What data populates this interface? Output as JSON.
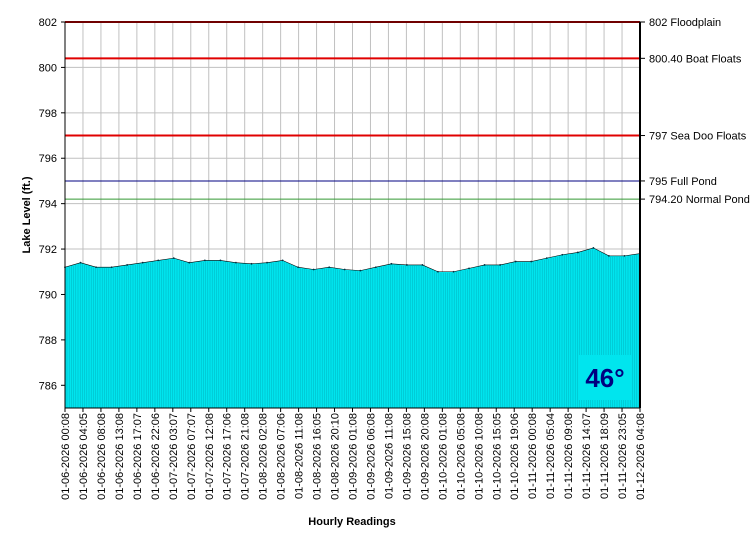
{
  "chart_data": {
    "type": "area",
    "title": "",
    "xlabel": "Hourly Readings",
    "ylabel": "Lake Level (ft.)",
    "ylim": [
      785,
      802
    ],
    "yticks": [
      786,
      788,
      790,
      792,
      794,
      796,
      798,
      800,
      802
    ],
    "grid": true,
    "legend": "none",
    "x_tick_labels": [
      "01-06-2026 00:08",
      "01-06-2026 04:05",
      "01-06-2026 08:08",
      "01-06-2026 13:08",
      "01-06-2026 17:07",
      "01-06-2026 22:06",
      "01-07-2026 03:07",
      "01-07-2026 07:07",
      "01-07-2026 12:08",
      "01-07-2026 17:06",
      "01-07-2026 21:08",
      "01-08-2026 02:08",
      "01-08-2026 07:06",
      "01-08-2026 11:08",
      "01-08-2026 16:05",
      "01-08-2026 20:10",
      "01-09-2026 01:08",
      "01-09-2026 06:08",
      "01-09-2026 11:08",
      "01-09-2026 15:08",
      "01-09-2026 20:08",
      "01-10-2026 01:08",
      "01-10-2026 05:08",
      "01-10-2026 10:08",
      "01-10-2026 15:05",
      "01-10-2026 19:06",
      "01-11-2026 00:08",
      "01-11-2026 05:04",
      "01-11-2026 09:08",
      "01-11-2026 14:07",
      "01-11-2026 18:09",
      "01-11-2026 23:05",
      "01-12-2026 04:08"
    ],
    "series": [
      {
        "values": [
          791.2,
          791.4,
          791.2,
          791.2,
          791.3,
          791.4,
          791.5,
          791.6,
          791.4,
          791.5,
          791.5,
          791.4,
          791.35,
          791.4,
          791.5,
          791.2,
          791.1,
          791.2,
          791.1,
          791.05,
          791.2,
          791.35,
          791.3,
          791.3,
          791.0,
          791.0,
          791.15,
          791.3,
          791.3,
          791.45,
          791.45,
          791.6,
          791.75,
          791.85,
          792.05,
          791.7,
          791.7,
          791.8
        ],
        "color": "#00e5ee"
      }
    ],
    "reference_lines": [
      {
        "value": 802,
        "label": "802 Floodplain",
        "color": "#e00000"
      },
      {
        "value": 800.4,
        "label": "800.40 Boat Floats",
        "color": "#e00000"
      },
      {
        "value": 797,
        "label": "797 Sea Doo Floats",
        "color": "#e00000"
      },
      {
        "value": 795,
        "label": "795 Full Pond",
        "color": "#000080"
      },
      {
        "value": 794.2,
        "label": "794.20 Normal Pond",
        "color": "#339933"
      }
    ]
  },
  "badge": {
    "text": "46°",
    "background": "#00e5ee",
    "color": "#000080"
  }
}
